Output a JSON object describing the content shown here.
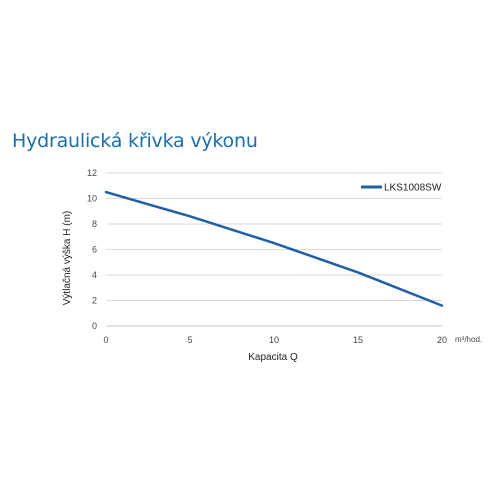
{
  "page": {
    "title": "Hydraulická křivka výkonu"
  },
  "chart_data": {
    "type": "line",
    "title": "",
    "xlabel": "Kapacita Q",
    "ylabel": "Výtlačná výška H (m)",
    "x_unit": "m³/hod.",
    "xlim": [
      0,
      20
    ],
    "ylim": [
      0,
      12
    ],
    "x_ticks": [
      0,
      5,
      10,
      15,
      20
    ],
    "y_ticks": [
      0,
      2,
      4,
      6,
      8,
      10,
      12
    ],
    "grid": "horizontal",
    "legend_position": "top-right",
    "series": [
      {
        "name": "LKS1008SW",
        "color": "#1f5fa6",
        "x": [
          0,
          5,
          10,
          15,
          20
        ],
        "y": [
          10.5,
          8.6,
          6.5,
          4.2,
          1.6
        ]
      }
    ]
  }
}
